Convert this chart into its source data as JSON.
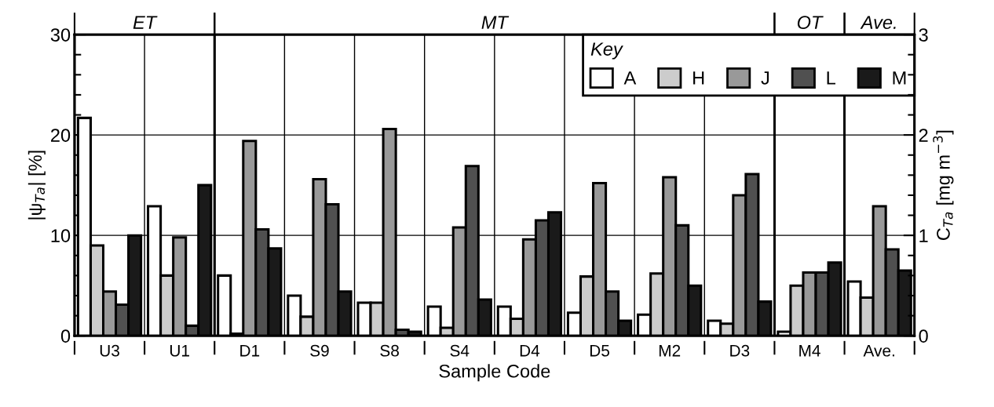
{
  "chart_data": {
    "type": "bar",
    "xlabel": "Sample Code",
    "ylabel": "|ψ$_{Ta}$| [%]",
    "y2label": "C$_{Ta}$ [mg m$^{−3}$]",
    "legend_title": "Key",
    "annotations": [
      "ET",
      "MT",
      "OT",
      "Ave."
    ],
    "categories": [
      "U3",
      "U1",
      "D1",
      "S9",
      "S8",
      "S4",
      "D4",
      "D5",
      "M2",
      "D3",
      "M4",
      "Ave."
    ],
    "series": [
      {
        "name": "A",
        "color": "#ffffff",
        "values": [
          21.7,
          12.9,
          6.0,
          4.0,
          3.3,
          2.9,
          2.9,
          2.3,
          2.1,
          1.5,
          0.4,
          5.4
        ]
      },
      {
        "name": "H",
        "color": "#cccccc",
        "values": [
          9.0,
          6.0,
          0.2,
          1.9,
          3.3,
          0.8,
          1.7,
          5.9,
          6.2,
          1.2,
          5.0,
          3.8
        ]
      },
      {
        "name": "J",
        "color": "#999999",
        "values": [
          4.4,
          9.8,
          19.4,
          15.6,
          20.6,
          10.8,
          9.6,
          15.2,
          15.8,
          14.0,
          6.3,
          12.9
        ]
      },
      {
        "name": "L",
        "color": "#505050",
        "values": [
          3.1,
          1.0,
          10.6,
          13.1,
          0.6,
          16.9,
          11.5,
          4.4,
          11.0,
          16.1,
          6.3,
          8.6
        ]
      },
      {
        "name": "M",
        "color": "#1a1a1a",
        "values": [
          10.0,
          15.0,
          8.7,
          4.4,
          0.4,
          3.6,
          12.3,
          1.5,
          5.0,
          3.4,
          7.3,
          6.5
        ]
      }
    ],
    "ylim": [
      0,
      30
    ],
    "yticks": [
      0,
      10,
      20,
      30
    ],
    "y2lim": [
      0,
      3
    ],
    "y2ticks": [
      0,
      1,
      2,
      3
    ],
    "grid": true,
    "legend": "top right"
  }
}
